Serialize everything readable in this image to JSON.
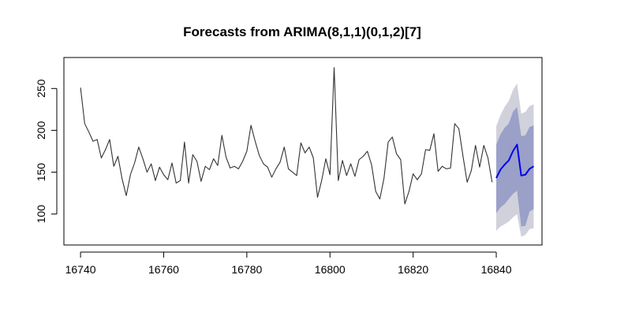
{
  "chart_data": {
    "type": "line",
    "title": "Forecasts from ARIMA(8,1,1)(0,1,2)[7]",
    "xlabel": "",
    "ylabel": "",
    "xlim": [
      16736,
      16851
    ],
    "ylim": [
      63,
      287
    ],
    "x_ticks": [
      16740,
      16760,
      16780,
      16800,
      16820,
      16840
    ],
    "y_ticks": [
      100,
      150,
      200,
      250
    ],
    "grid": false,
    "colors": {
      "observed": "#333333",
      "forecast": "#0000ee",
      "interval_80": "#9aa0c8",
      "interval_95": "#d1d1db"
    },
    "observed": {
      "x_start": 16740,
      "values": [
        251,
        208,
        198,
        187,
        189,
        167,
        177,
        189,
        157,
        169,
        142,
        122,
        147,
        161,
        180,
        166,
        150,
        160,
        140,
        156,
        147,
        141,
        161,
        137,
        140,
        186,
        137,
        171,
        163,
        139,
        157,
        153,
        166,
        158,
        194,
        168,
        155,
        157,
        154,
        163,
        175,
        206,
        187,
        170,
        160,
        156,
        144,
        154,
        162,
        180,
        154,
        150,
        146,
        185,
        173,
        180,
        167,
        120,
        140,
        166,
        147,
        275,
        140,
        164,
        146,
        160,
        145,
        165,
        169,
        175,
        159,
        127,
        118,
        143,
        186,
        192,
        172,
        165,
        112,
        127,
        148,
        141,
        148,
        177,
        176,
        196,
        151,
        157,
        154,
        155,
        208,
        202,
        169,
        138,
        152,
        182,
        156,
        182,
        167,
        138
      ]
    },
    "forecast": {
      "x": [
        16840,
        16841,
        16842,
        16843,
        16844,
        16845,
        16846,
        16847,
        16848,
        16849
      ],
      "mean": [
        143,
        153,
        159,
        164,
        175,
        183,
        146,
        147,
        154,
        157
      ],
      "lo80": [
        101,
        108,
        112,
        118,
        124,
        128,
        85,
        86,
        103,
        106
      ],
      "hi80": [
        183,
        195,
        203,
        208,
        222,
        228,
        193,
        194,
        204,
        206
      ],
      "lo95": [
        80,
        85,
        88,
        91,
        96,
        100,
        73,
        75,
        82,
        83
      ],
      "hi95": [
        205,
        218,
        228,
        235,
        248,
        256,
        220,
        222,
        229,
        231
      ]
    }
  }
}
